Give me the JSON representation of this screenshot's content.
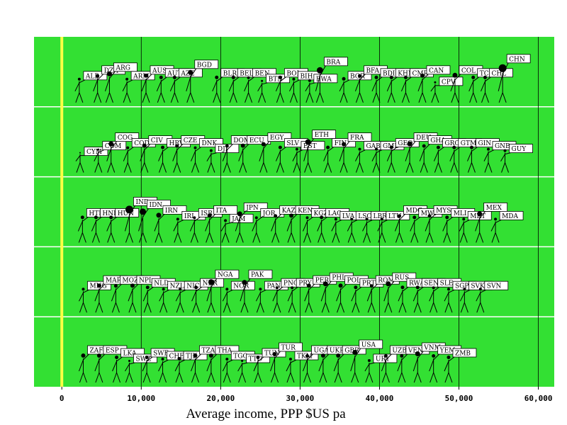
{
  "chart_data": {
    "type": "scatter",
    "title": "",
    "xlabel": "Average income, PPP $US pa",
    "ylabel": "",
    "xlim": [
      -3500,
      62000
    ],
    "x_ticks": [
      0,
      10000,
      20000,
      30000,
      40000,
      50000,
      60000
    ],
    "x_tick_labels": [
      "0",
      "10,000",
      "20,000",
      "30,000",
      "40,000",
      "50,000",
      "60,000"
    ],
    "reference_line_x": 0,
    "grid": true,
    "rows": 5,
    "colors": {
      "background": "#33e033",
      "reference_line": "#ffff44",
      "grid": "#000000",
      "row_divider": "#ffffff"
    },
    "points": [
      {
        "code": "ALB",
        "x": 2200,
        "row": 0,
        "d": 1,
        "size": 4
      },
      {
        "code": "DZA",
        "x": 4500,
        "row": 0,
        "d": 3,
        "size": 5
      },
      {
        "code": "ARG",
        "x": 6000,
        "row": 0,
        "d": 4,
        "size": 7
      },
      {
        "code": "ARM",
        "x": 8200,
        "row": 0,
        "d": 1,
        "size": 4
      },
      {
        "code": "AUS",
        "x": 10600,
        "row": 0,
        "d": 3,
        "size": 6
      },
      {
        "code": "AUT",
        "x": 12500,
        "row": 0,
        "d": 2,
        "size": 5
      },
      {
        "code": "AZE",
        "x": 14200,
        "row": 0,
        "d": 2,
        "size": 5
      },
      {
        "code": "BGD",
        "x": 16200,
        "row": 0,
        "d": 5,
        "size": 7
      },
      {
        "code": "BLR",
        "x": 19500,
        "row": 0,
        "d": 2,
        "size": 5
      },
      {
        "code": "BEL",
        "x": 21600,
        "row": 0,
        "d": 2,
        "size": 5
      },
      {
        "code": "BEN",
        "x": 23500,
        "row": 0,
        "d": 2,
        "size": 4
      },
      {
        "code": "BTN",
        "x": 25200,
        "row": 0,
        "d": 0,
        "size": 3
      },
      {
        "code": "BOL",
        "x": 27500,
        "row": 0,
        "d": 2,
        "size": 5
      },
      {
        "code": "BIH",
        "x": 29200,
        "row": 0,
        "d": 1,
        "size": 4
      },
      {
        "code": "BWA",
        "x": 31200,
        "row": 0,
        "d": 0,
        "size": 4
      },
      {
        "code": "BRA",
        "x": 32500,
        "row": 0,
        "d": 6,
        "size": 9
      },
      {
        "code": "BGR",
        "x": 35500,
        "row": 0,
        "d": 1,
        "size": 5
      },
      {
        "code": "BFA",
        "x": 37500,
        "row": 0,
        "d": 3,
        "size": 5
      },
      {
        "code": "BDI",
        "x": 39600,
        "row": 0,
        "d": 2,
        "size": 5
      },
      {
        "code": "KHM",
        "x": 41500,
        "row": 0,
        "d": 2,
        "size": 5
      },
      {
        "code": "CMR",
        "x": 43300,
        "row": 0,
        "d": 2,
        "size": 5
      },
      {
        "code": "CAN",
        "x": 45400,
        "row": 0,
        "d": 3,
        "size": 6
      },
      {
        "code": "CPV",
        "x": 47000,
        "row": 0,
        "d": -1,
        "size": 3
      },
      {
        "code": "COL",
        "x": 49500,
        "row": 0,
        "d": 3,
        "size": 7
      },
      {
        "code": "TCD",
        "x": 51800,
        "row": 0,
        "d": 2,
        "size": 5
      },
      {
        "code": "CHL",
        "x": 53300,
        "row": 0,
        "d": 2,
        "size": 5
      },
      {
        "code": "CHN",
        "x": 55500,
        "row": 0,
        "d": 7,
        "size": 11
      },
      {
        "code": "CYM",
        "x": 2300,
        "row": 1,
        "d": -1,
        "size": 2
      },
      {
        "code": "COM",
        "x": 4600,
        "row": 1,
        "d": 1,
        "size": 3
      },
      {
        "code": "COG",
        "x": 6200,
        "row": 1,
        "d": 4,
        "size": 7
      },
      {
        "code": "COD",
        "x": 8300,
        "row": 1,
        "d": 2,
        "size": 4
      },
      {
        "code": "CIV",
        "x": 10400,
        "row": 1,
        "d": 3,
        "size": 6
      },
      {
        "code": "HRV",
        "x": 12700,
        "row": 1,
        "d": 2,
        "size": 5
      },
      {
        "code": "CZE",
        "x": 14500,
        "row": 1,
        "d": 3,
        "size": 5
      },
      {
        "code": "DNK",
        "x": 16800,
        "row": 1,
        "d": 2,
        "size": 4
      },
      {
        "code": "DJI",
        "x": 18800,
        "row": 1,
        "d": 0,
        "size": 4
      },
      {
        "code": "DOM",
        "x": 20800,
        "row": 1,
        "d": 3,
        "size": 5
      },
      {
        "code": "ECU",
        "x": 22800,
        "row": 1,
        "d": 3,
        "size": 6
      },
      {
        "code": "EGY",
        "x": 25400,
        "row": 1,
        "d": 4,
        "size": 6
      },
      {
        "code": "SLV",
        "x": 27500,
        "row": 1,
        "d": 2,
        "size": 5
      },
      {
        "code": "EST",
        "x": 29600,
        "row": 1,
        "d": 1,
        "size": 4
      },
      {
        "code": "ETH",
        "x": 31000,
        "row": 1,
        "d": 5,
        "size": 8
      },
      {
        "code": "FIN",
        "x": 33500,
        "row": 1,
        "d": 2,
        "size": 5
      },
      {
        "code": "FRA",
        "x": 35500,
        "row": 1,
        "d": 4,
        "size": 6
      },
      {
        "code": "GAB",
        "x": 37500,
        "row": 1,
        "d": 1,
        "size": 4
      },
      {
        "code": "GMB",
        "x": 39600,
        "row": 1,
        "d": 1,
        "size": 4
      },
      {
        "code": "GEO",
        "x": 41500,
        "row": 1,
        "d": 2,
        "size": 5
      },
      {
        "code": "DEU",
        "x": 43800,
        "row": 1,
        "d": 4,
        "size": 7
      },
      {
        "code": "GHA",
        "x": 45600,
        "row": 1,
        "d": 3,
        "size": 5
      },
      {
        "code": "GRC",
        "x": 47400,
        "row": 1,
        "d": 2,
        "size": 5
      },
      {
        "code": "GTM",
        "x": 49400,
        "row": 1,
        "d": 2,
        "size": 5
      },
      {
        "code": "GIN",
        "x": 51600,
        "row": 1,
        "d": 2,
        "size": 5
      },
      {
        "code": "GNB",
        "x": 53700,
        "row": 1,
        "d": 1,
        "size": 4
      },
      {
        "code": "GUY",
        "x": 55800,
        "row": 1,
        "d": 0,
        "size": 4
      },
      {
        "code": "HTI",
        "x": 2600,
        "row": 2,
        "d": 2,
        "size": 5
      },
      {
        "code": "HND",
        "x": 4300,
        "row": 2,
        "d": 2,
        "size": 5
      },
      {
        "code": "HUN",
        "x": 6200,
        "row": 2,
        "d": 2,
        "size": 5
      },
      {
        "code": "IND",
        "x": 8500,
        "row": 2,
        "d": 6,
        "size": 11
      },
      {
        "code": "IDN",
        "x": 10200,
        "row": 2,
        "d": 5,
        "size": 9
      },
      {
        "code": "IRN",
        "x": 12200,
        "row": 2,
        "d": 3,
        "size": 7
      },
      {
        "code": "IRL",
        "x": 14600,
        "row": 2,
        "d": 1,
        "size": 4
      },
      {
        "code": "ISR",
        "x": 16700,
        "row": 2,
        "d": 2,
        "size": 4
      },
      {
        "code": "ITA",
        "x": 18600,
        "row": 2,
        "d": 3,
        "size": 6
      },
      {
        "code": "JAM",
        "x": 20600,
        "row": 2,
        "d": 0,
        "size": 4
      },
      {
        "code": "JPN",
        "x": 22400,
        "row": 2,
        "d": 4,
        "size": 7
      },
      {
        "code": "JOR",
        "x": 24500,
        "row": 2,
        "d": 2,
        "size": 4
      },
      {
        "code": "KAZ",
        "x": 26900,
        "row": 2,
        "d": 3,
        "size": 5
      },
      {
        "code": "KEN",
        "x": 28900,
        "row": 2,
        "d": 3,
        "size": 6
      },
      {
        "code": "KGZ",
        "x": 30900,
        "row": 2,
        "d": 2,
        "size": 4
      },
      {
        "code": "LAO",
        "x": 32700,
        "row": 2,
        "d": 2,
        "size": 5
      },
      {
        "code": "LVA",
        "x": 34500,
        "row": 2,
        "d": 1,
        "size": 4
      },
      {
        "code": "LSO",
        "x": 36500,
        "row": 2,
        "d": 1,
        "size": 4
      },
      {
        "code": "LBR",
        "x": 38400,
        "row": 2,
        "d": 1,
        "size": 4
      },
      {
        "code": "LTU",
        "x": 40300,
        "row": 2,
        "d": 1,
        "size": 4
      },
      {
        "code": "MDG",
        "x": 42500,
        "row": 2,
        "d": 3,
        "size": 5
      },
      {
        "code": "MWI",
        "x": 44400,
        "row": 2,
        "d": 2,
        "size": 5
      },
      {
        "code": "MYS",
        "x": 46300,
        "row": 2,
        "d": 3,
        "size": 5
      },
      {
        "code": "MLI",
        "x": 48500,
        "row": 2,
        "d": 2,
        "size": 5
      },
      {
        "code": "MRT",
        "x": 50600,
        "row": 2,
        "d": 1,
        "size": 4
      },
      {
        "code": "MEX",
        "x": 52600,
        "row": 2,
        "d": 4,
        "size": 7
      },
      {
        "code": "MDA",
        "x": 54600,
        "row": 2,
        "d": 1,
        "size": 4
      },
      {
        "code": "MNG",
        "x": 2700,
        "row": 3,
        "d": 1,
        "size": 4
      },
      {
        "code": "MAR",
        "x": 4700,
        "row": 3,
        "d": 3,
        "size": 6
      },
      {
        "code": "MOZ",
        "x": 6800,
        "row": 3,
        "d": 3,
        "size": 5
      },
      {
        "code": "NPL",
        "x": 8900,
        "row": 3,
        "d": 3,
        "size": 6
      },
      {
        "code": "NLD",
        "x": 10800,
        "row": 3,
        "d": 2,
        "size": 5
      },
      {
        "code": "NZL",
        "x": 12800,
        "row": 3,
        "d": 1,
        "size": 4
      },
      {
        "code": "NIC",
        "x": 14900,
        "row": 3,
        "d": 1,
        "size": 4
      },
      {
        "code": "NER",
        "x": 16900,
        "row": 3,
        "d": 2,
        "size": 5
      },
      {
        "code": "NGA",
        "x": 18800,
        "row": 3,
        "d": 5,
        "size": 8
      },
      {
        "code": "NOR",
        "x": 20800,
        "row": 3,
        "d": 1,
        "size": 4
      },
      {
        "code": "PAK",
        "x": 23000,
        "row": 3,
        "d": 5,
        "size": 7
      },
      {
        "code": "PAN",
        "x": 25000,
        "row": 3,
        "d": 1,
        "size": 4
      },
      {
        "code": "PNG",
        "x": 27100,
        "row": 3,
        "d": 2,
        "size": 4
      },
      {
        "code": "PRY",
        "x": 29000,
        "row": 3,
        "d": 2,
        "size": 4
      },
      {
        "code": "PER",
        "x": 31100,
        "row": 3,
        "d": 3,
        "size": 6
      },
      {
        "code": "PHL",
        "x": 33200,
        "row": 3,
        "d": 4,
        "size": 7
      },
      {
        "code": "POL",
        "x": 35100,
        "row": 3,
        "d": 3,
        "size": 6
      },
      {
        "code": "PRT",
        "x": 37000,
        "row": 3,
        "d": 2,
        "size": 5
      },
      {
        "code": "ROM",
        "x": 39000,
        "row": 3,
        "d": 3,
        "size": 5
      },
      {
        "code": "RUS",
        "x": 41100,
        "row": 3,
        "d": 4,
        "size": 7
      },
      {
        "code": "RWA",
        "x": 42900,
        "row": 3,
        "d": 2,
        "size": 5
      },
      {
        "code": "SEN",
        "x": 44800,
        "row": 3,
        "d": 2,
        "size": 5
      },
      {
        "code": "SLE",
        "x": 46800,
        "row": 3,
        "d": 2,
        "size": 4
      },
      {
        "code": "SGP",
        "x": 48700,
        "row": 3,
        "d": 1,
        "size": 4
      },
      {
        "code": "SVK",
        "x": 50700,
        "row": 3,
        "d": 1,
        "size": 4
      },
      {
        "code": "SVN",
        "x": 52700,
        "row": 3,
        "d": 1,
        "size": 4
      },
      {
        "code": "ZAF",
        "x": 2700,
        "row": 4,
        "d": 3,
        "size": 6
      },
      {
        "code": "ESP",
        "x": 4700,
        "row": 4,
        "d": 3,
        "size": 6
      },
      {
        "code": "LKA",
        "x": 6900,
        "row": 4,
        "d": 2,
        "size": 5
      },
      {
        "code": "SWZ",
        "x": 8500,
        "row": 4,
        "d": 0,
        "size": 3
      },
      {
        "code": "SWE",
        "x": 10700,
        "row": 4,
        "d": 2,
        "size": 5
      },
      {
        "code": "CHE",
        "x": 12700,
        "row": 4,
        "d": 1,
        "size": 4
      },
      {
        "code": "TJK",
        "x": 14800,
        "row": 4,
        "d": 1,
        "size": 5
      },
      {
        "code": "TZA",
        "x": 16800,
        "row": 4,
        "d": 3,
        "size": 6
      },
      {
        "code": "THA",
        "x": 18800,
        "row": 4,
        "d": 3,
        "size": 6
      },
      {
        "code": "TGO",
        "x": 20800,
        "row": 4,
        "d": 1,
        "size": 4
      },
      {
        "code": "TTO",
        "x": 22700,
        "row": 4,
        "d": 0,
        "size": 3
      },
      {
        "code": "TUN",
        "x": 24700,
        "row": 4,
        "d": 2,
        "size": 5
      },
      {
        "code": "TUR",
        "x": 26800,
        "row": 4,
        "d": 4,
        "size": 6
      },
      {
        "code": "TKM",
        "x": 28800,
        "row": 4,
        "d": 1,
        "size": 4
      },
      {
        "code": "UGA",
        "x": 30900,
        "row": 4,
        "d": 3,
        "size": 5
      },
      {
        "code": "UKR",
        "x": 32900,
        "row": 4,
        "d": 3,
        "size": 6
      },
      {
        "code": "GBR",
        "x": 34800,
        "row": 4,
        "d": 3,
        "size": 6
      },
      {
        "code": "USA",
        "x": 36900,
        "row": 4,
        "d": 5,
        "size": 7
      },
      {
        "code": "URY",
        "x": 38700,
        "row": 4,
        "d": 0,
        "size": 4
      },
      {
        "code": "UZB",
        "x": 40800,
        "row": 4,
        "d": 3,
        "size": 5
      },
      {
        "code": "VEN",
        "x": 42800,
        "row": 4,
        "d": 3,
        "size": 5
      },
      {
        "code": "VNM",
        "x": 44800,
        "row": 4,
        "d": 4,
        "size": 7
      },
      {
        "code": "YEM",
        "x": 46800,
        "row": 4,
        "d": 3,
        "size": 5
      },
      {
        "code": "ZMB",
        "x": 48700,
        "row": 4,
        "d": 2,
        "size": 5
      }
    ]
  }
}
